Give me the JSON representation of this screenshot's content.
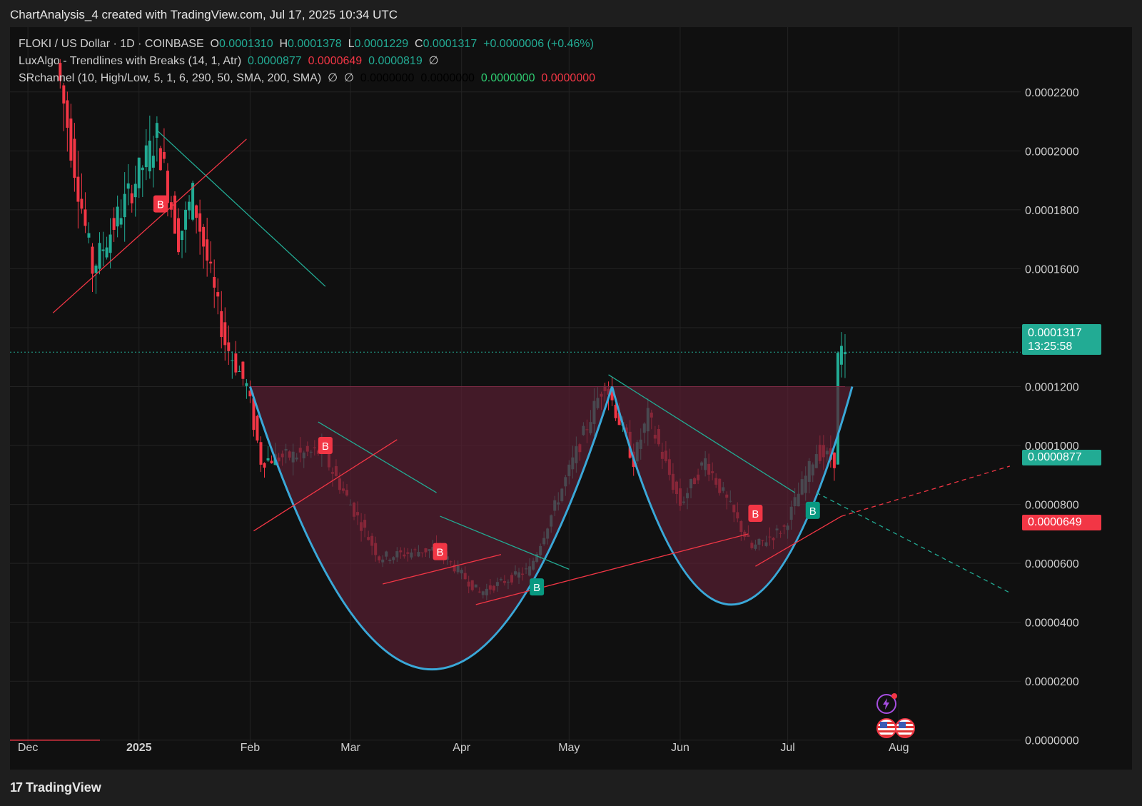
{
  "header": {
    "title": "ChartAnalysis_4 created with TradingView.com, Jul 17, 2025 10:34 UTC"
  },
  "legend": {
    "symbol": "FLOKI / US Dollar · 1D · COINBASE",
    "open_label": "O",
    "open": "0.0001310",
    "high_label": "H",
    "high": "0.0001378",
    "low_label": "L",
    "low": "0.0001229",
    "close_label": "C",
    "close": "0.0001317",
    "change": "+0.0000006 (+0.46%)",
    "indicator1": {
      "name": "LuxAlgo - Trendlines with Breaks (14, 1, Atr)",
      "v1": "0.0000877",
      "v2": "0.0000649",
      "v3": "0.0000819",
      "icon": "∅"
    },
    "indicator2": {
      "name": "SRchannel (10, High/Low, 5, 1, 6, 290, 50, SMA, 200, SMA)",
      "icon1": "∅",
      "icon2": "∅",
      "v1": "0.0000000",
      "v2": "0.0000000",
      "v3": "0.0000000",
      "v4": "0.0000000"
    }
  },
  "price_tags": {
    "last": {
      "price": "0.0001317",
      "countdown": "13:25:58",
      "color": "#22ab94"
    },
    "upper_trend": {
      "price": "0.0000877",
      "color": "#22ab94"
    },
    "lower_trend": {
      "price": "0.0000649",
      "color": "#f23645"
    }
  },
  "brand": {
    "name": "TradingView"
  },
  "icons": [
    "lightning-icon",
    "us-flag-icon",
    "us-flag-icon"
  ],
  "chart_data": {
    "type": "candlestick",
    "x_ticks": [
      {
        "label": "Dec",
        "date": "2024-12-01"
      },
      {
        "label": "2025",
        "date": "2025-01-01"
      },
      {
        "label": "Feb",
        "date": "2025-02-01"
      },
      {
        "label": "Mar",
        "date": "2025-03-01"
      },
      {
        "label": "Apr",
        "date": "2025-04-01"
      },
      {
        "label": "May",
        "date": "2025-05-01"
      },
      {
        "label": "Jun",
        "date": "2025-06-01"
      },
      {
        "label": "Jul",
        "date": "2025-07-01"
      },
      {
        "label": "Aug",
        "date": "2025-08-01"
      }
    ],
    "y_ticks": [
      "0.0000000",
      "0.0000200",
      "0.0000400",
      "0.0000600",
      "0.0000800",
      "0.0001000",
      "0.0001200",
      "0.0001400",
      "0.0001600",
      "0.0001800",
      "0.0002000",
      "0.0002200"
    ],
    "y_range": [
      -1e-05,
      0.000242
    ],
    "x_range": [
      "2024-11-26",
      "2025-09-04"
    ],
    "grid": true,
    "colors": {
      "up": "#22ab94",
      "down": "#f23645",
      "pattern_fill": "#5a1f33",
      "curve": "#3aa8d8",
      "trend_up_line": "#f23645",
      "trend_down_line": "#22ab94"
    },
    "key_points": [
      {
        "date": "2024-12-10",
        "price": 0.00023
      },
      {
        "date": "2024-12-20",
        "price": 0.00016
      },
      {
        "date": "2025-01-07",
        "price": 0.000205
      },
      {
        "date": "2025-01-13",
        "price": 0.00017
      },
      {
        "date": "2025-01-17",
        "price": 0.000185
      },
      {
        "date": "2025-01-26",
        "price": 0.000135
      },
      {
        "date": "2025-02-01",
        "price": 0.00012
      },
      {
        "date": "2025-02-05",
        "price": 9.5e-05
      },
      {
        "date": "2025-02-22",
        "price": 9.8e-05
      },
      {
        "date": "2025-03-10",
        "price": 6.2e-05
      },
      {
        "date": "2025-03-26",
        "price": 6.5e-05
      },
      {
        "date": "2025-04-07",
        "price": 5e-05
      },
      {
        "date": "2025-04-21",
        "price": 5.8e-05
      },
      {
        "date": "2025-05-12",
        "price": 0.000122
      },
      {
        "date": "2025-05-20",
        "price": 9.5e-05
      },
      {
        "date": "2025-05-24",
        "price": 0.00011
      },
      {
        "date": "2025-06-02",
        "price": 8e-05
      },
      {
        "date": "2025-06-09",
        "price": 9.5e-05
      },
      {
        "date": "2025-06-22",
        "price": 6.5e-05
      },
      {
        "date": "2025-07-01",
        "price": 7.2e-05
      },
      {
        "date": "2025-07-10",
        "price": 9.8e-05
      },
      {
        "date": "2025-07-15",
        "price": 9.5e-05
      },
      {
        "date": "2025-07-16",
        "price": 0.00013
      },
      {
        "date": "2025-07-17",
        "price": 0.0001317
      }
    ],
    "resistance": {
      "price": 0.00012,
      "from": "2025-02-01",
      "to": "2025-07-17"
    },
    "cup_curves": [
      {
        "from": "2025-02-01",
        "to": "2025-05-13",
        "top": 0.00012,
        "bottom": 2.4e-05,
        "bottom_date": "2025-03-24"
      },
      {
        "from": "2025-05-13",
        "to": "2025-07-19",
        "top": 0.00012,
        "bottom": 4.6e-05,
        "bottom_date": "2025-06-15"
      }
    ],
    "trendlines_down": [
      {
        "from": [
          "2025-01-06",
          0.000207
        ],
        "to": [
          "2025-02-22",
          0.000154
        ]
      },
      {
        "from": [
          "2025-02-20",
          0.000108
        ],
        "to": [
          "2025-03-25",
          8.4e-05
        ]
      },
      {
        "from": [
          "2025-03-26",
          7.6e-05
        ],
        "to": [
          "2025-05-01",
          5.8e-05
        ]
      },
      {
        "from": [
          "2025-05-12",
          0.000124
        ],
        "to": [
          "2025-07-03",
          8.4e-05
        ]
      }
    ],
    "trendlines_up": [
      {
        "from": [
          "2024-12-08",
          0.000145
        ],
        "to": [
          "2025-01-31",
          0.000204
        ]
      },
      {
        "from": [
          "2025-02-02",
          7.1e-05
        ],
        "to": [
          "2025-03-14",
          0.000102
        ]
      },
      {
        "from": [
          "2025-03-10",
          5.3e-05
        ],
        "to": [
          "2025-04-12",
          6.3e-05
        ]
      },
      {
        "from": [
          "2025-04-05",
          4.6e-05
        ],
        "to": [
          "2025-06-20",
          7e-05
        ]
      },
      {
        "from": [
          "2025-06-22",
          5.9e-05
        ],
        "to": [
          "2025-07-16",
          7.6e-05
        ]
      }
    ],
    "projection_up": {
      "from": [
        "2025-07-16",
        7.6e-05
      ],
      "to": [
        "2025-09-01",
        9.3e-05
      ]
    },
    "projection_down": {
      "from": [
        "2025-07-09",
        8.4e-05
      ],
      "to": [
        "2025-09-01",
        5e-05
      ]
    },
    "break_labels": [
      {
        "text": "B",
        "date": "2025-01-07",
        "price": 0.000182,
        "kind": "bearish"
      },
      {
        "text": "B",
        "date": "2025-02-22",
        "price": 0.0001,
        "kind": "bearish"
      },
      {
        "text": "B",
        "date": "2025-03-26",
        "price": 6.4e-05,
        "kind": "bearish"
      },
      {
        "text": "B",
        "date": "2025-04-22",
        "price": 5.2e-05,
        "kind": "bullish"
      },
      {
        "text": "B",
        "date": "2025-06-22",
        "price": 7.7e-05,
        "kind": "bearish"
      },
      {
        "text": "B",
        "date": "2025-07-08",
        "price": 7.8e-05,
        "kind": "bullish"
      }
    ]
  }
}
